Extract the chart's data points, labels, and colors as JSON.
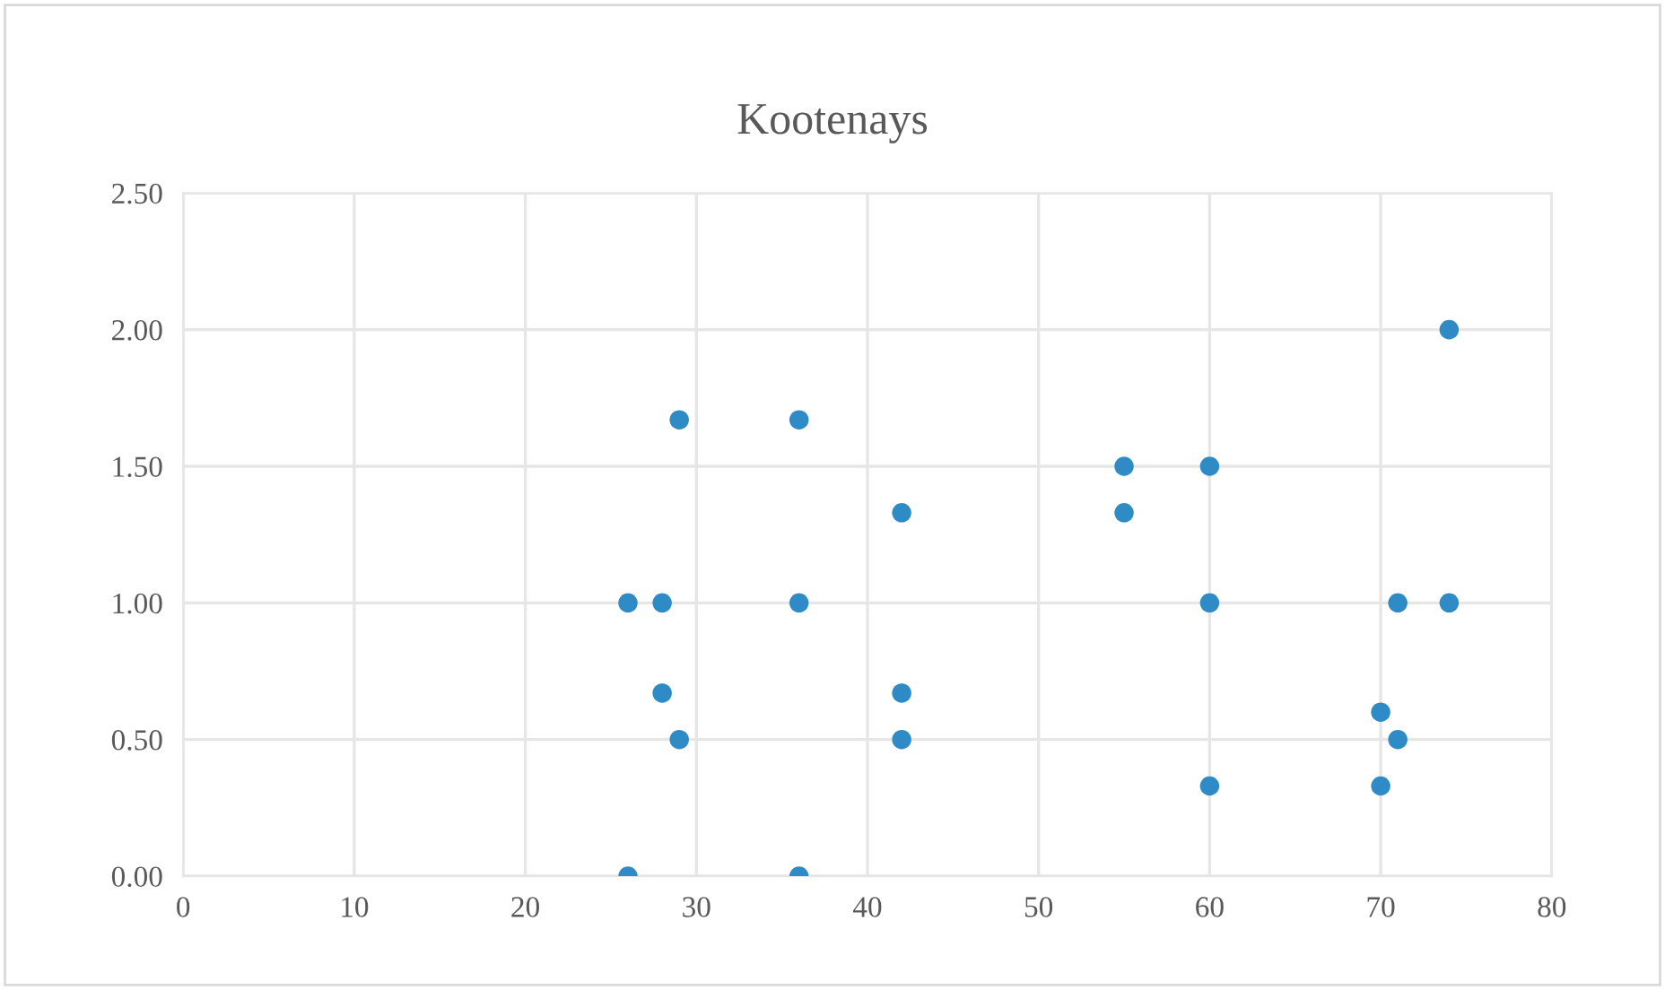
{
  "chart_data": {
    "type": "scatter",
    "title": "Kootenays",
    "series": [
      {
        "color": "#2e8bc6",
        "x": [
          29,
          36,
          42,
          26,
          28,
          36,
          28,
          29,
          42,
          42,
          26,
          36,
          55,
          55,
          60,
          60,
          60,
          71,
          71,
          74,
          74,
          70,
          70
        ],
        "values": [
          1.67,
          1.67,
          1.33,
          1.0,
          1.0,
          1.0,
          0.67,
          0.5,
          0.67,
          0.5,
          0.0,
          0.0,
          1.5,
          1.33,
          1.5,
          1.0,
          0.33,
          1.0,
          0.5,
          2.0,
          1.0,
          0.6,
          0.33
        ]
      }
    ],
    "xlim": [
      0,
      80
    ],
    "xticks": [
      0,
      10,
      20,
      30,
      40,
      50,
      60,
      70,
      80
    ],
    "ylim": [
      0,
      2.5
    ],
    "yticks": [
      {
        "value": 0,
        "label": "0.00"
      },
      {
        "value": 0.5,
        "label": "0.50"
      },
      {
        "value": 1.0,
        "label": "1.00"
      },
      {
        "value": 1.5,
        "label": "1.50"
      },
      {
        "value": 2.0,
        "label": "2.00"
      },
      {
        "value": 2.5,
        "label": "2.50"
      }
    ],
    "grid": true,
    "marker": "circle"
  }
}
